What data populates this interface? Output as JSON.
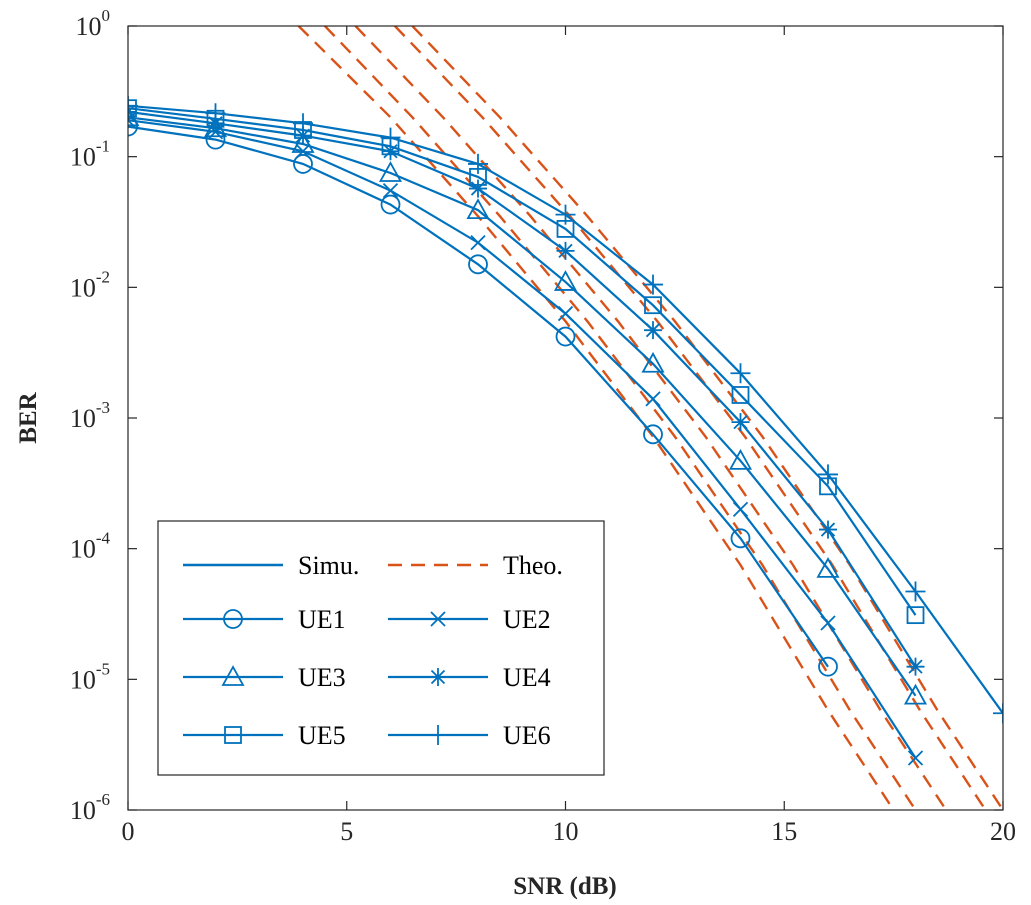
{
  "chart_data": {
    "type": "line",
    "xlabel": "SNR (dB)",
    "ylabel": "BER",
    "xlim": [
      0,
      20
    ],
    "ylim": [
      1e-06,
      1
    ],
    "yscale": "log",
    "grid": false,
    "legend_placement": "bottom-left",
    "x_ticks": [
      0,
      5,
      10,
      15,
      20
    ],
    "y_ticks": [
      {
        "value": 1,
        "base": "10",
        "exp": "0"
      },
      {
        "value": 0.1,
        "base": "10",
        "exp": "-1"
      },
      {
        "value": 0.01,
        "base": "10",
        "exp": "-2"
      },
      {
        "value": 0.001,
        "base": "10",
        "exp": "-3"
      },
      {
        "value": 0.0001,
        "base": "10",
        "exp": "-4"
      },
      {
        "value": 1e-05,
        "base": "10",
        "exp": "-5"
      },
      {
        "value": 1e-06,
        "base": "10",
        "exp": "-6"
      }
    ],
    "colors": {
      "simulation": "#0072BD",
      "theory": "#D95319"
    },
    "legend": {
      "simu": "Simu.",
      "theo": "Theo."
    },
    "series": [
      {
        "name": "UE1",
        "marker": "circle",
        "x": [
          0,
          2,
          4,
          6,
          8,
          10,
          12,
          14,
          16
        ],
        "y": [
          0.17,
          0.135,
          0.088,
          0.043,
          0.015,
          0.0042,
          0.00075,
          0.00012,
          1.25e-05
        ]
      },
      {
        "name": "UE2",
        "marker": "x",
        "x": [
          0,
          2,
          4,
          6,
          8,
          10,
          12,
          14,
          16,
          18
        ],
        "y": [
          0.19,
          0.155,
          0.11,
          0.055,
          0.022,
          0.0063,
          0.0014,
          0.0002,
          2.7e-05,
          2.5e-06
        ]
      },
      {
        "name": "UE3",
        "marker": "triangle",
        "x": [
          0,
          2,
          4,
          6,
          8,
          10,
          12,
          14,
          16,
          18
        ],
        "y": [
          0.2,
          0.165,
          0.125,
          0.075,
          0.039,
          0.011,
          0.0026,
          0.00047,
          7e-05,
          7.5e-06
        ]
      },
      {
        "name": "UE4",
        "marker": "star",
        "x": [
          0,
          2,
          4,
          6,
          8,
          10,
          12,
          14,
          16,
          18
        ],
        "y": [
          0.22,
          0.18,
          0.145,
          0.11,
          0.057,
          0.019,
          0.0047,
          0.00093,
          0.00014,
          1.25e-05
        ]
      },
      {
        "name": "UE5",
        "marker": "square",
        "x": [
          0,
          2,
          4,
          6,
          8,
          10,
          12,
          14,
          16,
          18
        ],
        "y": [
          0.235,
          0.195,
          0.16,
          0.12,
          0.07,
          0.028,
          0.0073,
          0.0015,
          0.0003,
          3.1e-05
        ]
      },
      {
        "name": "UE6",
        "marker": "plus",
        "x": [
          0,
          2,
          4,
          6,
          8,
          10,
          12,
          14,
          16,
          18,
          20
        ],
        "y": [
          0.245,
          0.215,
          0.18,
          0.14,
          0.088,
          0.036,
          0.0105,
          0.0022,
          0.00037,
          4.7e-05,
          5.5e-06
        ]
      }
    ],
    "theory": [
      {
        "x": [
          3.9,
          6,
          8,
          10,
          12,
          14,
          16,
          17.5
        ],
        "y": [
          1,
          0.2,
          0.035,
          0.0055,
          0.00072,
          7.5e-05,
          5.8e-06,
          1e-06
        ]
      },
      {
        "x": [
          4.5,
          6.5,
          8.5,
          10.5,
          12.5,
          14.5,
          16.5,
          18
        ],
        "y": [
          1,
          0.2,
          0.035,
          0.0055,
          0.00072,
          7.5e-05,
          5.8e-06,
          1e-06
        ]
      },
      {
        "x": [
          5.2,
          7.2,
          9.2,
          11.2,
          13.2,
          15.2,
          17.2,
          18.7
        ],
        "y": [
          1,
          0.2,
          0.035,
          0.0055,
          0.00072,
          7.5e-05,
          5.8e-06,
          1e-06
        ]
      },
      {
        "x": [
          6.1,
          8.1,
          10.1,
          12.1,
          14.1,
          16.1,
          18.1,
          19.6
        ],
        "y": [
          1,
          0.2,
          0.035,
          0.0055,
          0.00072,
          7.5e-05,
          5.8e-06,
          1e-06
        ]
      },
      {
        "x": [
          6.5,
          8.5,
          10.5,
          12.5,
          14.5,
          16.5,
          18.5,
          20
        ],
        "y": [
          1,
          0.2,
          0.035,
          0.0055,
          0.00072,
          7.5e-05,
          5.8e-06,
          1e-06
        ]
      }
    ]
  }
}
